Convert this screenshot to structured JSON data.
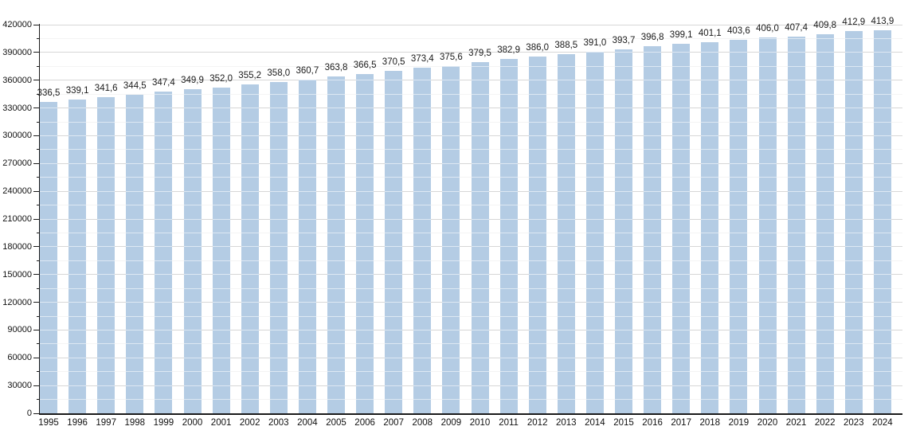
{
  "chart_data": {
    "type": "bar",
    "title": "",
    "xlabel": "",
    "ylabel": "",
    "legend": "none",
    "grid": "major+minor horizontal",
    "categories": [
      "1995",
      "1996",
      "1997",
      "1998",
      "1999",
      "2000",
      "2001",
      "2002",
      "2003",
      "2004",
      "2005",
      "2006",
      "2007",
      "2008",
      "2009",
      "2010",
      "2011",
      "2012",
      "2013",
      "2014",
      "2015",
      "2016",
      "2017",
      "2018",
      "2019",
      "2020",
      "2021",
      "2022",
      "2023",
      "2024"
    ],
    "values": [
      336500,
      339100,
      341600,
      344500,
      347400,
      349900,
      352000,
      355200,
      358000,
      360700,
      363800,
      366500,
      370500,
      373400,
      375600,
      379500,
      382900,
      386000,
      388500,
      391000,
      393700,
      396800,
      399100,
      401100,
      403600,
      406000,
      407400,
      409800,
      412900,
      413900
    ],
    "value_labels": [
      "336,5",
      "339,1",
      "341,6",
      "344,5",
      "347,4",
      "349,9",
      "352,0",
      "355,2",
      "358,0",
      "360,7",
      "363,8",
      "366,5",
      "370,5",
      "373,4",
      "375,6",
      "379,5",
      "382,9",
      "386,0",
      "388,5",
      "391,0",
      "393,7",
      "396,8",
      "399,1",
      "401,1",
      "403,6",
      "406,0",
      "407,4",
      "409,8",
      "412,9",
      "413,9"
    ],
    "ylim": [
      0,
      420000
    ],
    "y_major_step": 30000,
    "y_minor_step": 15000,
    "yticks": [
      0,
      30000,
      60000,
      90000,
      120000,
      150000,
      180000,
      210000,
      240000,
      270000,
      300000,
      330000,
      360000,
      390000,
      420000
    ],
    "colors": {
      "bar": "#b4cce4",
      "grid_major": "#a6a6a6",
      "grid_minor": "#e6e6e6",
      "grid_over_bar": "rgba(255,255,255,0.55)",
      "axis": "#1a1a1a",
      "text": "#111111"
    }
  }
}
